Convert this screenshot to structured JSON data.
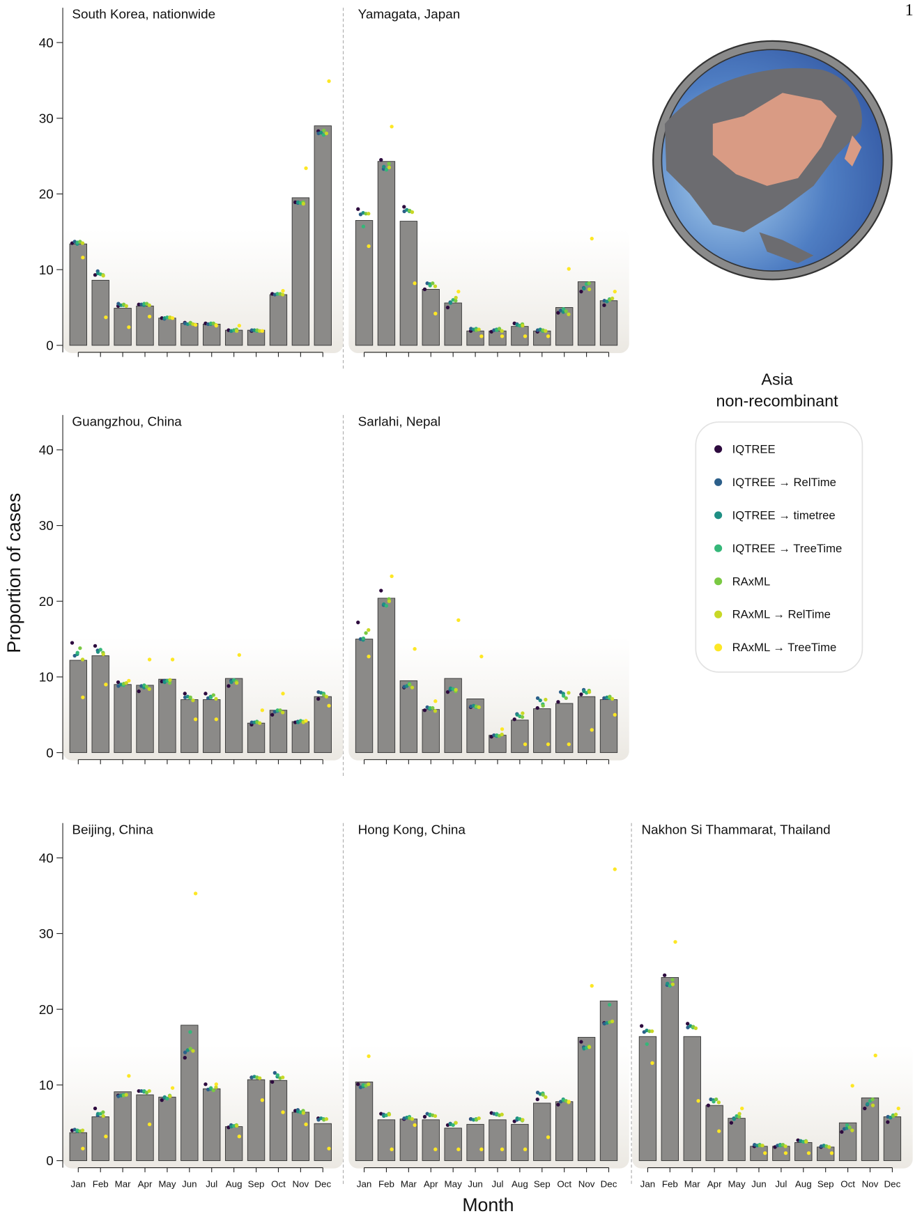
{
  "page_number": "1",
  "ylabel": "Proportion of cases",
  "xlabel": "Month",
  "legend": {
    "title": [
      "Asia",
      "non-recombinant"
    ],
    "series": [
      {
        "name": "IQTREE",
        "color": "#2d0a3e"
      },
      {
        "name": "IQTREE → RelTime",
        "color": "#2c5f8a"
      },
      {
        "name": "IQTREE → timetree",
        "color": "#1f8f84"
      },
      {
        "name": "IQTREE → TreeTime",
        "color": "#35b779"
      },
      {
        "name": "RAxML",
        "color": "#7ac943"
      },
      {
        "name": "RAxML → RelTime",
        "color": "#c8d826"
      },
      {
        "name": "RAxML → TreeTime",
        "color": "#fde725"
      }
    ]
  },
  "chart_data": [
    {
      "type": "bar",
      "title": "South Korea, nationwide",
      "color": "#8b8a88",
      "ylim": [
        0,
        44.6
      ],
      "yticks": [
        0,
        10,
        20,
        30,
        40
      ],
      "values": [
        13.4,
        8.6,
        4.9,
        5.2,
        3.6,
        2.9,
        2.8,
        2.0,
        2.0,
        6.7,
        19.5,
        29.0
      ],
      "series": [
        {
          "values": [
            13.5,
            9.3,
            5.2,
            5.4,
            3.6,
            3.0,
            2.9,
            2.0,
            1.9,
            6.8,
            18.9,
            28.3
          ]
        },
        {
          "values": [
            13.7,
            9.8,
            5.5,
            5.4,
            3.5,
            2.9,
            2.8,
            1.9,
            2.0,
            6.7,
            18.8,
            28.0
          ]
        },
        {
          "values": [
            13.4,
            9.5,
            5.3,
            5.3,
            3.6,
            2.8,
            2.8,
            1.9,
            2.0,
            6.8,
            18.9,
            28.1
          ]
        },
        {
          "values": [
            13.6,
            9.4,
            5.3,
            5.5,
            3.7,
            2.9,
            2.9,
            2.0,
            1.9,
            6.8,
            18.8,
            27.8
          ]
        },
        {
          "values": [
            13.7,
            9.3,
            5.4,
            5.5,
            3.6,
            3.0,
            2.9,
            2.1,
            2.0,
            6.8,
            18.9,
            28.4
          ]
        },
        {
          "values": [
            13.5,
            9.2,
            5.2,
            5.3,
            3.7,
            2.8,
            2.7,
            1.9,
            1.9,
            6.7,
            18.7,
            28.0
          ]
        },
        {
          "values": [
            11.6,
            3.7,
            2.4,
            3.8,
            3.6,
            2.7,
            2.6,
            2.6,
            1.9,
            7.2,
            23.4,
            34.9
          ]
        }
      ]
    },
    {
      "type": "bar",
      "title": "Yamagata, Japan",
      "color": "#8b8a88",
      "ylim": [
        0,
        44.6
      ],
      "values": [
        16.5,
        24.3,
        16.4,
        7.4,
        5.6,
        1.9,
        1.9,
        2.5,
        1.9,
        5.0,
        8.4,
        5.9
      ],
      "series": [
        {
          "values": [
            18.0,
            24.5,
            18.3,
            7.4,
            5.0,
            1.9,
            1.8,
            2.9,
            1.8,
            4.3,
            7.1,
            5.3
          ]
        },
        {
          "values": [
            17.3,
            23.3,
            17.7,
            8.2,
            5.7,
            2.2,
            2.0,
            2.8,
            2.0,
            4.6,
            7.6,
            5.9
          ]
        },
        {
          "values": [
            17.5,
            23.6,
            17.9,
            8.1,
            5.6,
            2.1,
            2.1,
            2.7,
            2.1,
            4.4,
            7.5,
            5.8
          ]
        },
        {
          "values": [
            15.7,
            23.2,
            17.7,
            7.9,
            6.0,
            2.2,
            2.0,
            2.6,
            1.9,
            4.8,
            8.1,
            6.1
          ]
        },
        {
          "values": [
            17.4,
            24.0,
            17.8,
            8.2,
            5.9,
            2.0,
            2.2,
            2.8,
            2.0,
            4.5,
            8.2,
            6.0
          ]
        },
        {
          "values": [
            17.4,
            23.5,
            17.6,
            7.8,
            6.3,
            2.1,
            1.9,
            2.6,
            1.9,
            4.1,
            7.4,
            6.2
          ]
        },
        {
          "values": [
            13.1,
            28.9,
            8.2,
            4.2,
            7.1,
            1.2,
            1.2,
            1.2,
            1.2,
            10.1,
            14.1,
            7.1
          ]
        }
      ]
    },
    {
      "type": "bar",
      "title": "Guangzhou, China",
      "color": "#8b8a88",
      "ylim": [
        0,
        44.6
      ],
      "yticks": [
        0,
        10,
        20,
        30,
        40
      ],
      "values": [
        12.2,
        12.8,
        9.0,
        8.9,
        9.7,
        7.0,
        7.0,
        9.8,
        3.9,
        5.6,
        4.1,
        7.4
      ],
      "series": [
        {
          "values": [
            14.5,
            14.1,
            9.3,
            8.1,
            9.4,
            7.8,
            7.8,
            8.8,
            3.7,
            5.0,
            4.0,
            7.1
          ]
        },
        {
          "values": [
            12.8,
            13.5,
            8.8,
            8.8,
            9.5,
            7.3,
            7.2,
            9.5,
            4.0,
            5.4,
            4.1,
            8.0
          ]
        },
        {
          "values": [
            13.0,
            13.3,
            9.0,
            8.6,
            9.3,
            7.4,
            7.4,
            9.3,
            4.0,
            5.5,
            4.0,
            7.9
          ]
        },
        {
          "values": [
            13.2,
            13.6,
            8.9,
            8.9,
            9.5,
            7.2,
            7.3,
            9.6,
            4.1,
            5.6,
            4.2,
            7.8
          ]
        },
        {
          "values": [
            13.8,
            13.2,
            9.1,
            8.7,
            9.2,
            7.3,
            7.6,
            9.4,
            4.0,
            5.6,
            4.1,
            7.6
          ]
        },
        {
          "values": [
            12.3,
            13.0,
            9.2,
            8.4,
            9.6,
            6.9,
            7.1,
            9.2,
            3.9,
            5.3,
            4.0,
            7.4
          ]
        },
        {
          "values": [
            7.3,
            9.0,
            9.5,
            12.3,
            12.3,
            4.4,
            4.4,
            12.9,
            5.6,
            7.8,
            4.2,
            6.2
          ]
        }
      ]
    },
    {
      "type": "bar",
      "title": "Sarlahi, Nepal",
      "color": "#8b8a88",
      "ylim": [
        0,
        44.6
      ],
      "values": [
        15.0,
        20.4,
        9.5,
        5.7,
        9.8,
        7.1,
        2.3,
        4.3,
        5.8,
        6.5,
        7.4,
        7.0
      ],
      "series": [
        {
          "values": [
            17.2,
            21.4,
            8.6,
            5.6,
            8.0,
            6.0,
            2.1,
            4.4,
            5.9,
            6.7,
            7.7,
            7.2
          ]
        },
        {
          "values": [
            15.0,
            19.5,
            8.7,
            6.0,
            8.3,
            6.1,
            2.3,
            5.1,
            7.2,
            8.0,
            8.3,
            7.2
          ]
        },
        {
          "values": [
            14.9,
            19.6,
            8.8,
            5.8,
            8.5,
            6.2,
            2.2,
            5.0,
            6.9,
            7.8,
            8.1,
            7.3
          ]
        },
        {
          "values": [
            15.1,
            19.4,
            9.1,
            5.9,
            8.4,
            6.0,
            2.3,
            4.8,
            6.4,
            7.5,
            7.9,
            7.2
          ]
        },
        {
          "values": [
            15.8,
            20.3,
            9.0,
            5.9,
            8.1,
            6.1,
            2.2,
            4.7,
            6.2,
            7.2,
            8.2,
            7.4
          ]
        },
        {
          "values": [
            16.2,
            20.0,
            8.6,
            5.5,
            8.3,
            6.0,
            2.4,
            5.2,
            7.0,
            7.9,
            8.0,
            7.1
          ]
        },
        {
          "values": [
            12.7,
            23.3,
            13.7,
            6.8,
            17.5,
            12.7,
            3.1,
            1.1,
            1.1,
            1.1,
            3.0,
            5.0
          ]
        }
      ]
    },
    {
      "type": "bar",
      "title": "Beijing, China",
      "color": "#8b8a88",
      "ylim": [
        0,
        44.6
      ],
      "yticks": [
        0,
        10,
        20,
        30,
        40
      ],
      "categories": [
        "Jan",
        "Feb",
        "Mar",
        "Apr",
        "May",
        "Jun",
        "Jul",
        "Aug",
        "Sep",
        "Oct",
        "Nov",
        "Dec"
      ],
      "values": [
        3.7,
        5.8,
        9.1,
        8.7,
        8.4,
        17.9,
        9.5,
        4.5,
        10.7,
        10.6,
        6.4,
        4.9
      ],
      "series": [
        {
          "values": [
            4.0,
            6.9,
            8.6,
            9.2,
            8.0,
            13.6,
            10.1,
            4.4,
            11.0,
            10.4,
            6.6,
            5.6
          ]
        },
        {
          "values": [
            4.1,
            6.0,
            8.5,
            9.2,
            8.3,
            14.3,
            9.4,
            4.7,
            11.0,
            11.6,
            6.7,
            5.4
          ]
        },
        {
          "values": [
            3.9,
            6.2,
            8.6,
            9.1,
            8.4,
            14.6,
            9.5,
            4.5,
            11.1,
            11.1,
            6.5,
            5.6
          ]
        },
        {
          "values": [
            4.0,
            6.2,
            8.7,
            9.2,
            8.2,
            17.0,
            9.6,
            4.6,
            11.0,
            11.3,
            6.4,
            5.5
          ]
        },
        {
          "values": [
            3.9,
            6.4,
            8.6,
            9.0,
            8.6,
            14.8,
            9.3,
            4.7,
            11.0,
            10.9,
            6.6,
            5.4
          ]
        },
        {
          "values": [
            4.0,
            5.9,
            8.7,
            9.2,
            8.5,
            14.5,
            9.7,
            4.6,
            10.9,
            11.0,
            6.3,
            5.5
          ]
        },
        {
          "values": [
            1.6,
            3.2,
            11.2,
            4.8,
            9.6,
            35.3,
            10.1,
            3.2,
            8.0,
            6.4,
            4.8,
            1.6
          ]
        }
      ]
    },
    {
      "type": "bar",
      "title": "Hong Kong, China",
      "color": "#8b8a88",
      "ylim": [
        0,
        44.6
      ],
      "categories": [
        "Jan",
        "Feb",
        "Mar",
        "Apr",
        "May",
        "Jun",
        "Jul",
        "Aug",
        "Sep",
        "Oct",
        "Nov",
        "Dec"
      ],
      "values": [
        10.4,
        5.4,
        5.5,
        5.4,
        4.3,
        4.8,
        5.4,
        4.8,
        7.6,
        7.8,
        16.3,
        21.1
      ],
      "series": [
        {
          "values": [
            10.1,
            6.2,
            5.5,
            5.8,
            4.7,
            5.5,
            6.3,
            5.2,
            8.1,
            7.4,
            15.7,
            18.2
          ]
        },
        {
          "values": [
            9.7,
            6.1,
            5.6,
            6.2,
            4.9,
            5.5,
            6.2,
            5.4,
            9.0,
            7.8,
            15.0,
            18.1
          ]
        },
        {
          "values": [
            9.8,
            5.9,
            5.7,
            6.0,
            4.8,
            5.4,
            6.1,
            5.6,
            8.8,
            8.1,
            14.8,
            18.2
          ]
        },
        {
          "values": [
            10.0,
            6.0,
            5.8,
            6.1,
            4.7,
            5.5,
            6.2,
            5.5,
            8.9,
            8.0,
            14.9,
            20.6
          ]
        },
        {
          "values": [
            9.9,
            6.2,
            5.6,
            6.0,
            5.0,
            5.4,
            6.0,
            5.3,
            8.7,
            7.9,
            15.1,
            18.3
          ]
        },
        {
          "values": [
            10.1,
            6.1,
            5.5,
            5.9,
            5.0,
            5.6,
            6.1,
            5.4,
            8.4,
            7.7,
            15.0,
            18.4
          ]
        },
        {
          "values": [
            13.8,
            1.5,
            4.7,
            1.5,
            1.5,
            1.5,
            1.5,
            1.5,
            3.1,
            7.8,
            23.1,
            38.5
          ]
        }
      ]
    },
    {
      "type": "bar",
      "title": "Nakhon Si Thammarat, Thailand",
      "color": "#8b8a88",
      "ylim": [
        0,
        44.6
      ],
      "categories": [
        "Jan",
        "Feb",
        "Mar",
        "Apr",
        "May",
        "Jun",
        "Jul",
        "Aug",
        "Sep",
        "Oct",
        "Nov",
        "Dec"
      ],
      "values": [
        16.4,
        24.2,
        16.4,
        7.3,
        5.6,
        1.9,
        1.9,
        2.4,
        1.8,
        5.0,
        8.3,
        5.8
      ],
      "series": [
        {
          "values": [
            17.8,
            24.5,
            18.1,
            7.3,
            5.0,
            1.9,
            1.8,
            2.7,
            1.8,
            3.8,
            6.9,
            5.1
          ]
        },
        {
          "values": [
            17.0,
            23.2,
            17.6,
            8.1,
            5.6,
            2.1,
            2.0,
            2.6,
            1.9,
            4.2,
            7.4,
            5.8
          ]
        },
        {
          "values": [
            17.2,
            23.4,
            17.8,
            8.0,
            5.5,
            2.0,
            2.1,
            2.6,
            2.0,
            4.3,
            7.5,
            5.7
          ]
        },
        {
          "values": [
            15.4,
            23.1,
            17.6,
            7.8,
            5.9,
            2.1,
            2.0,
            2.5,
            1.9,
            4.7,
            7.9,
            6.0
          ]
        },
        {
          "values": [
            17.1,
            23.9,
            17.7,
            8.1,
            5.8,
            2.0,
            2.1,
            2.6,
            1.9,
            4.4,
            8.1,
            5.9
          ]
        },
        {
          "values": [
            17.1,
            23.3,
            17.5,
            7.7,
            6.2,
            2.0,
            1.9,
            2.5,
            1.8,
            4.0,
            7.3,
            6.1
          ]
        },
        {
          "values": [
            12.9,
            28.9,
            7.9,
            3.9,
            6.9,
            1.0,
            1.0,
            1.0,
            1.0,
            9.9,
            13.9,
            6.9
          ]
        }
      ]
    }
  ]
}
